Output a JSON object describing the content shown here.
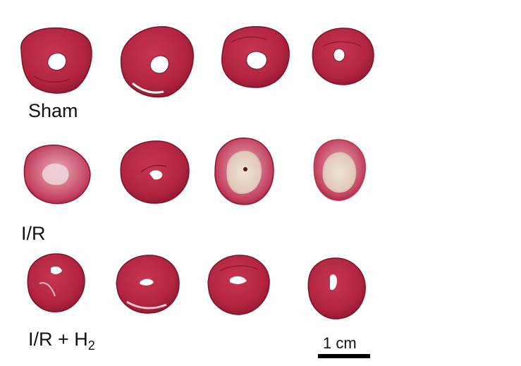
{
  "figure": {
    "groups": [
      {
        "label": "Sham",
        "slice_count": 4
      },
      {
        "label": "I/R",
        "slice_count": 4
      },
      {
        "label_main": "I/R + H",
        "label_subscript": "2",
        "slice_count": 4
      }
    ],
    "scale_bar": {
      "label": "1 cm"
    },
    "colors": {
      "tissue_red": "#b8253f",
      "tissue_dark": "#8e1530",
      "infarct_pale": "#e9d8c8",
      "rim_pink": "#e9b9c4",
      "background": "#ffffff"
    }
  }
}
